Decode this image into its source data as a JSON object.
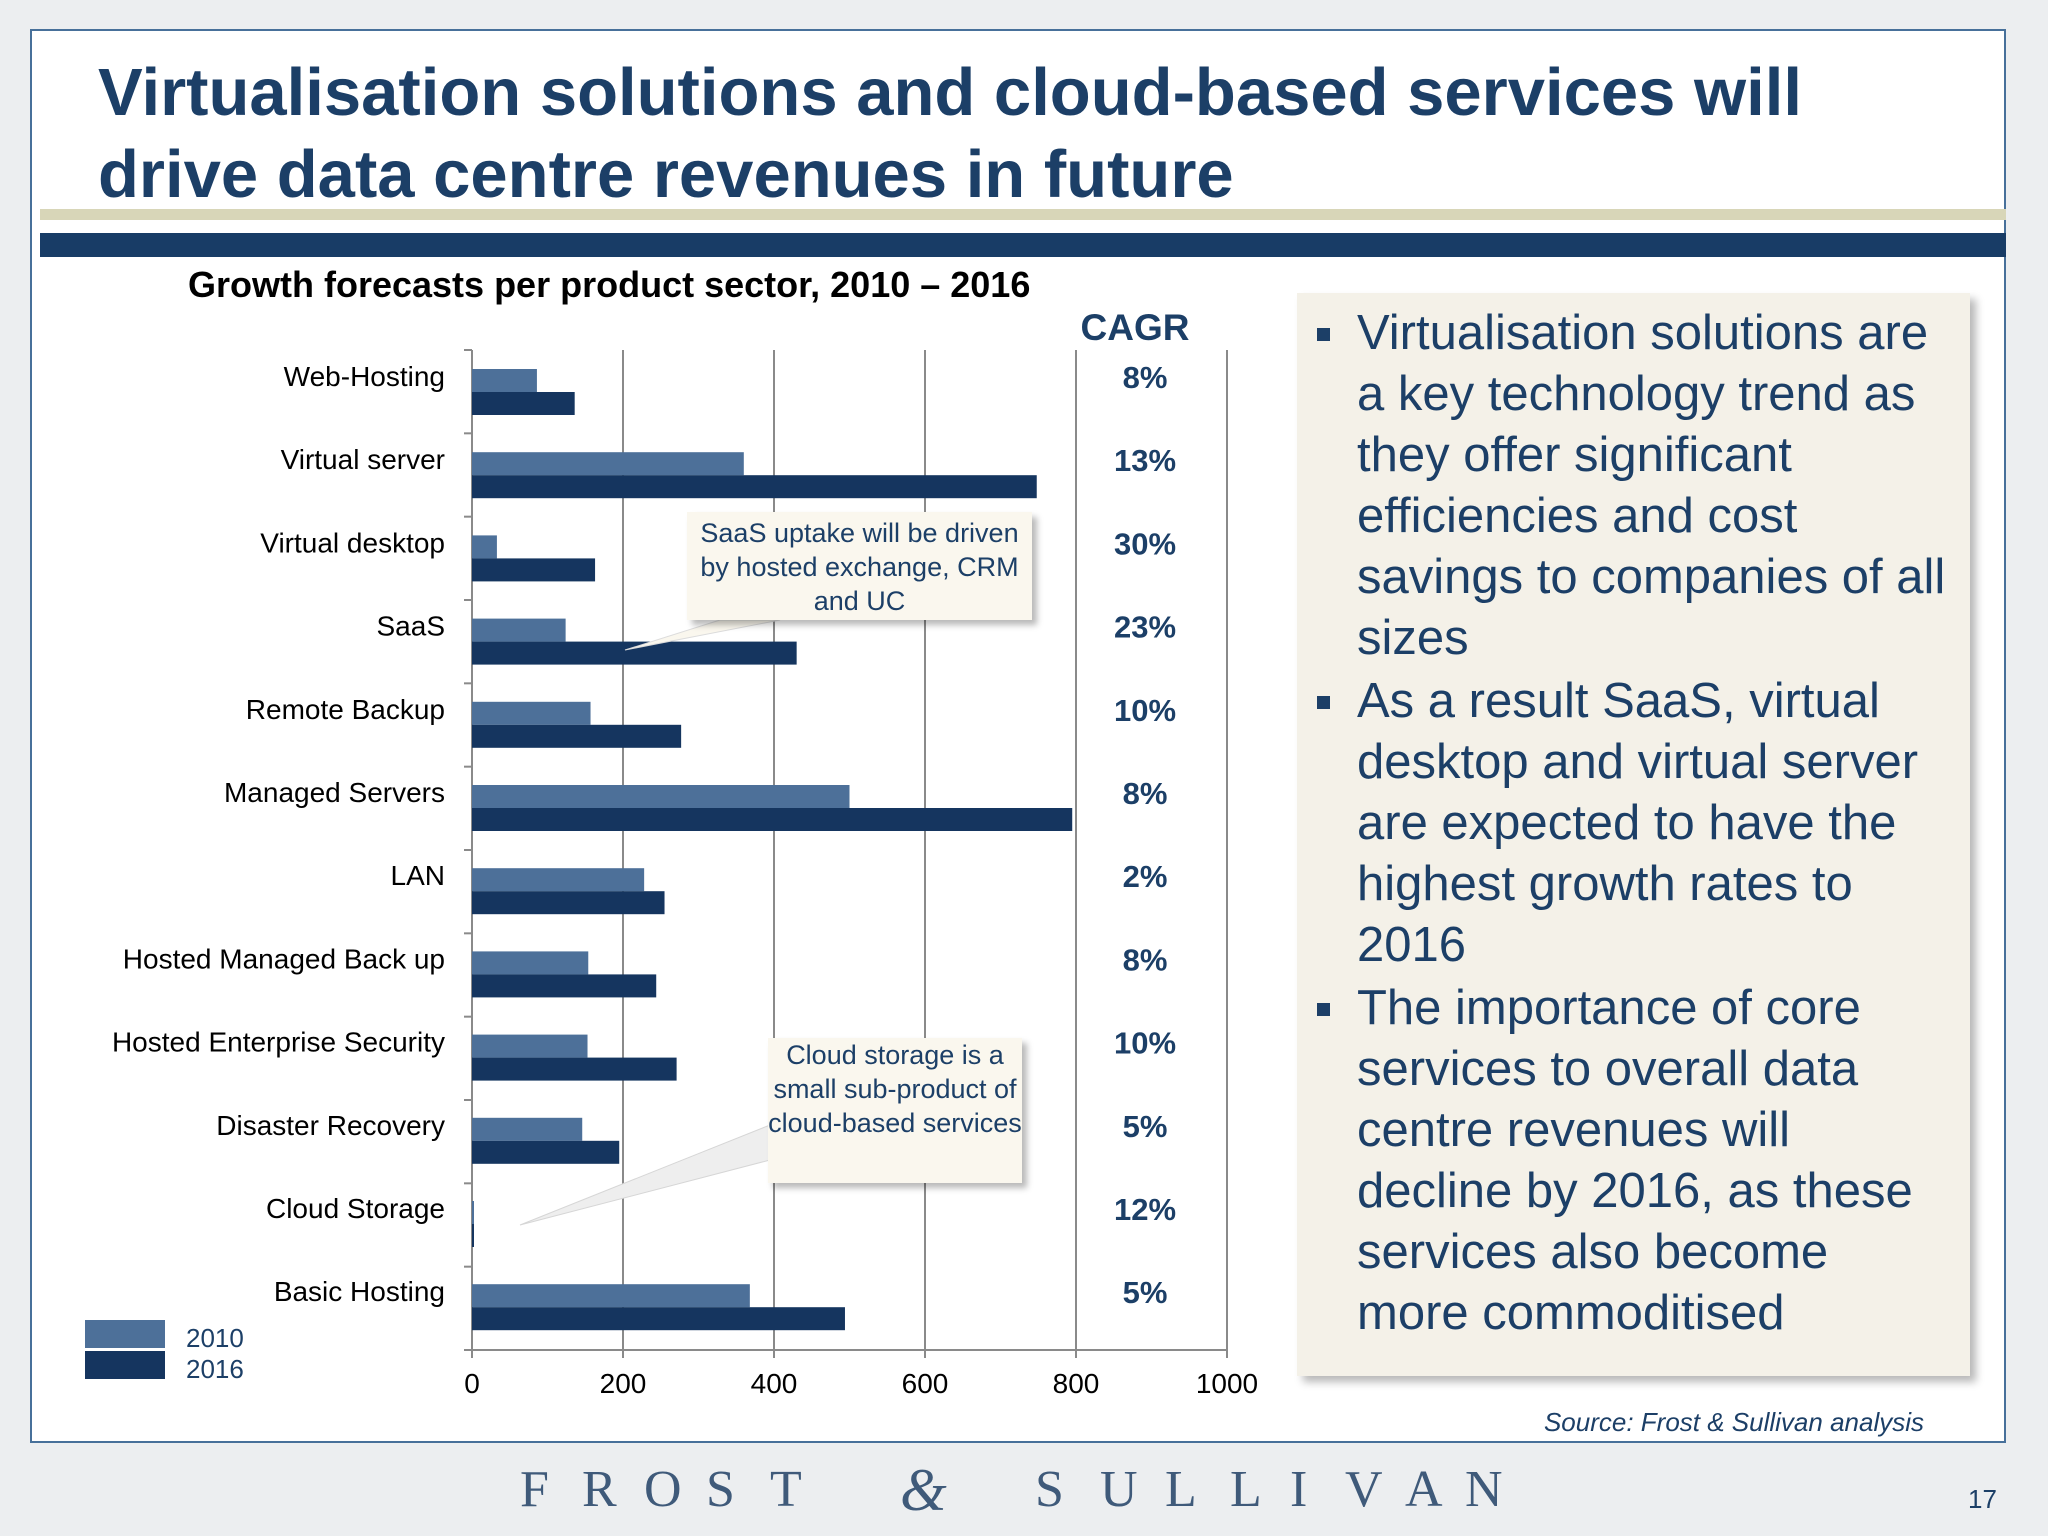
{
  "slide": {
    "title": "Virtualisation solutions and cloud-based services will drive data centre revenues in future",
    "source": "Source: Frost & Sullivan analysis",
    "page_number": "17",
    "logo_letters": [
      "F",
      "R",
      "O",
      "S",
      "T",
      "&",
      "S",
      "U",
      "L",
      "L",
      "I",
      "V",
      "A",
      "N"
    ]
  },
  "callouts": [
    "SaaS uptake will be driven by hosted exchange, CRM and UC",
    "Cloud storage is a small sub-product of cloud-based services"
  ],
  "bullets": [
    "Virtualisation solutions are a key technology trend as they offer significant efficiencies and cost savings to companies of all sizes",
    "As a result SaaS, virtual desktop and virtual server are expected to have the highest growth rates to 2016",
    "The importance of core services to overall data centre revenues will decline by 2016, as these services also become more commoditised"
  ],
  "colors": {
    "series_2010": "#4d7099",
    "series_2016": "#15355f",
    "title": "#1c3f67"
  },
  "chart_data": {
    "type": "bar",
    "orientation": "horizontal",
    "title": "Growth forecasts per product sector, 2010 – 2016",
    "cagr_header": "CAGR",
    "categories": [
      "Web-Hosting",
      "Virtual server",
      "Virtual desktop",
      "SaaS",
      "Remote Backup",
      "Managed Servers",
      "LAN",
      "Hosted Managed Back up",
      "Hosted Enterprise Security",
      "Disaster Recovery",
      "Cloud Storage",
      "Basic Hosting"
    ],
    "series": [
      {
        "name": "2010",
        "values": [
          86,
          360,
          33,
          124,
          157,
          500,
          228,
          154,
          153,
          146,
          1,
          368
        ]
      },
      {
        "name": "2016",
        "values": [
          136,
          748,
          163,
          430,
          277,
          795,
          255,
          244,
          271,
          195,
          2,
          494
        ]
      }
    ],
    "cagr": [
      "8%",
      "13%",
      "30%",
      "23%",
      "10%",
      "8%",
      "2%",
      "8%",
      "10%",
      "5%",
      "12%",
      "5%"
    ],
    "x_ticks": [
      0,
      200,
      400,
      600,
      800,
      1000
    ],
    "xlim": [
      0,
      1000
    ],
    "grid": true,
    "legend_position": "bottom-left"
  }
}
